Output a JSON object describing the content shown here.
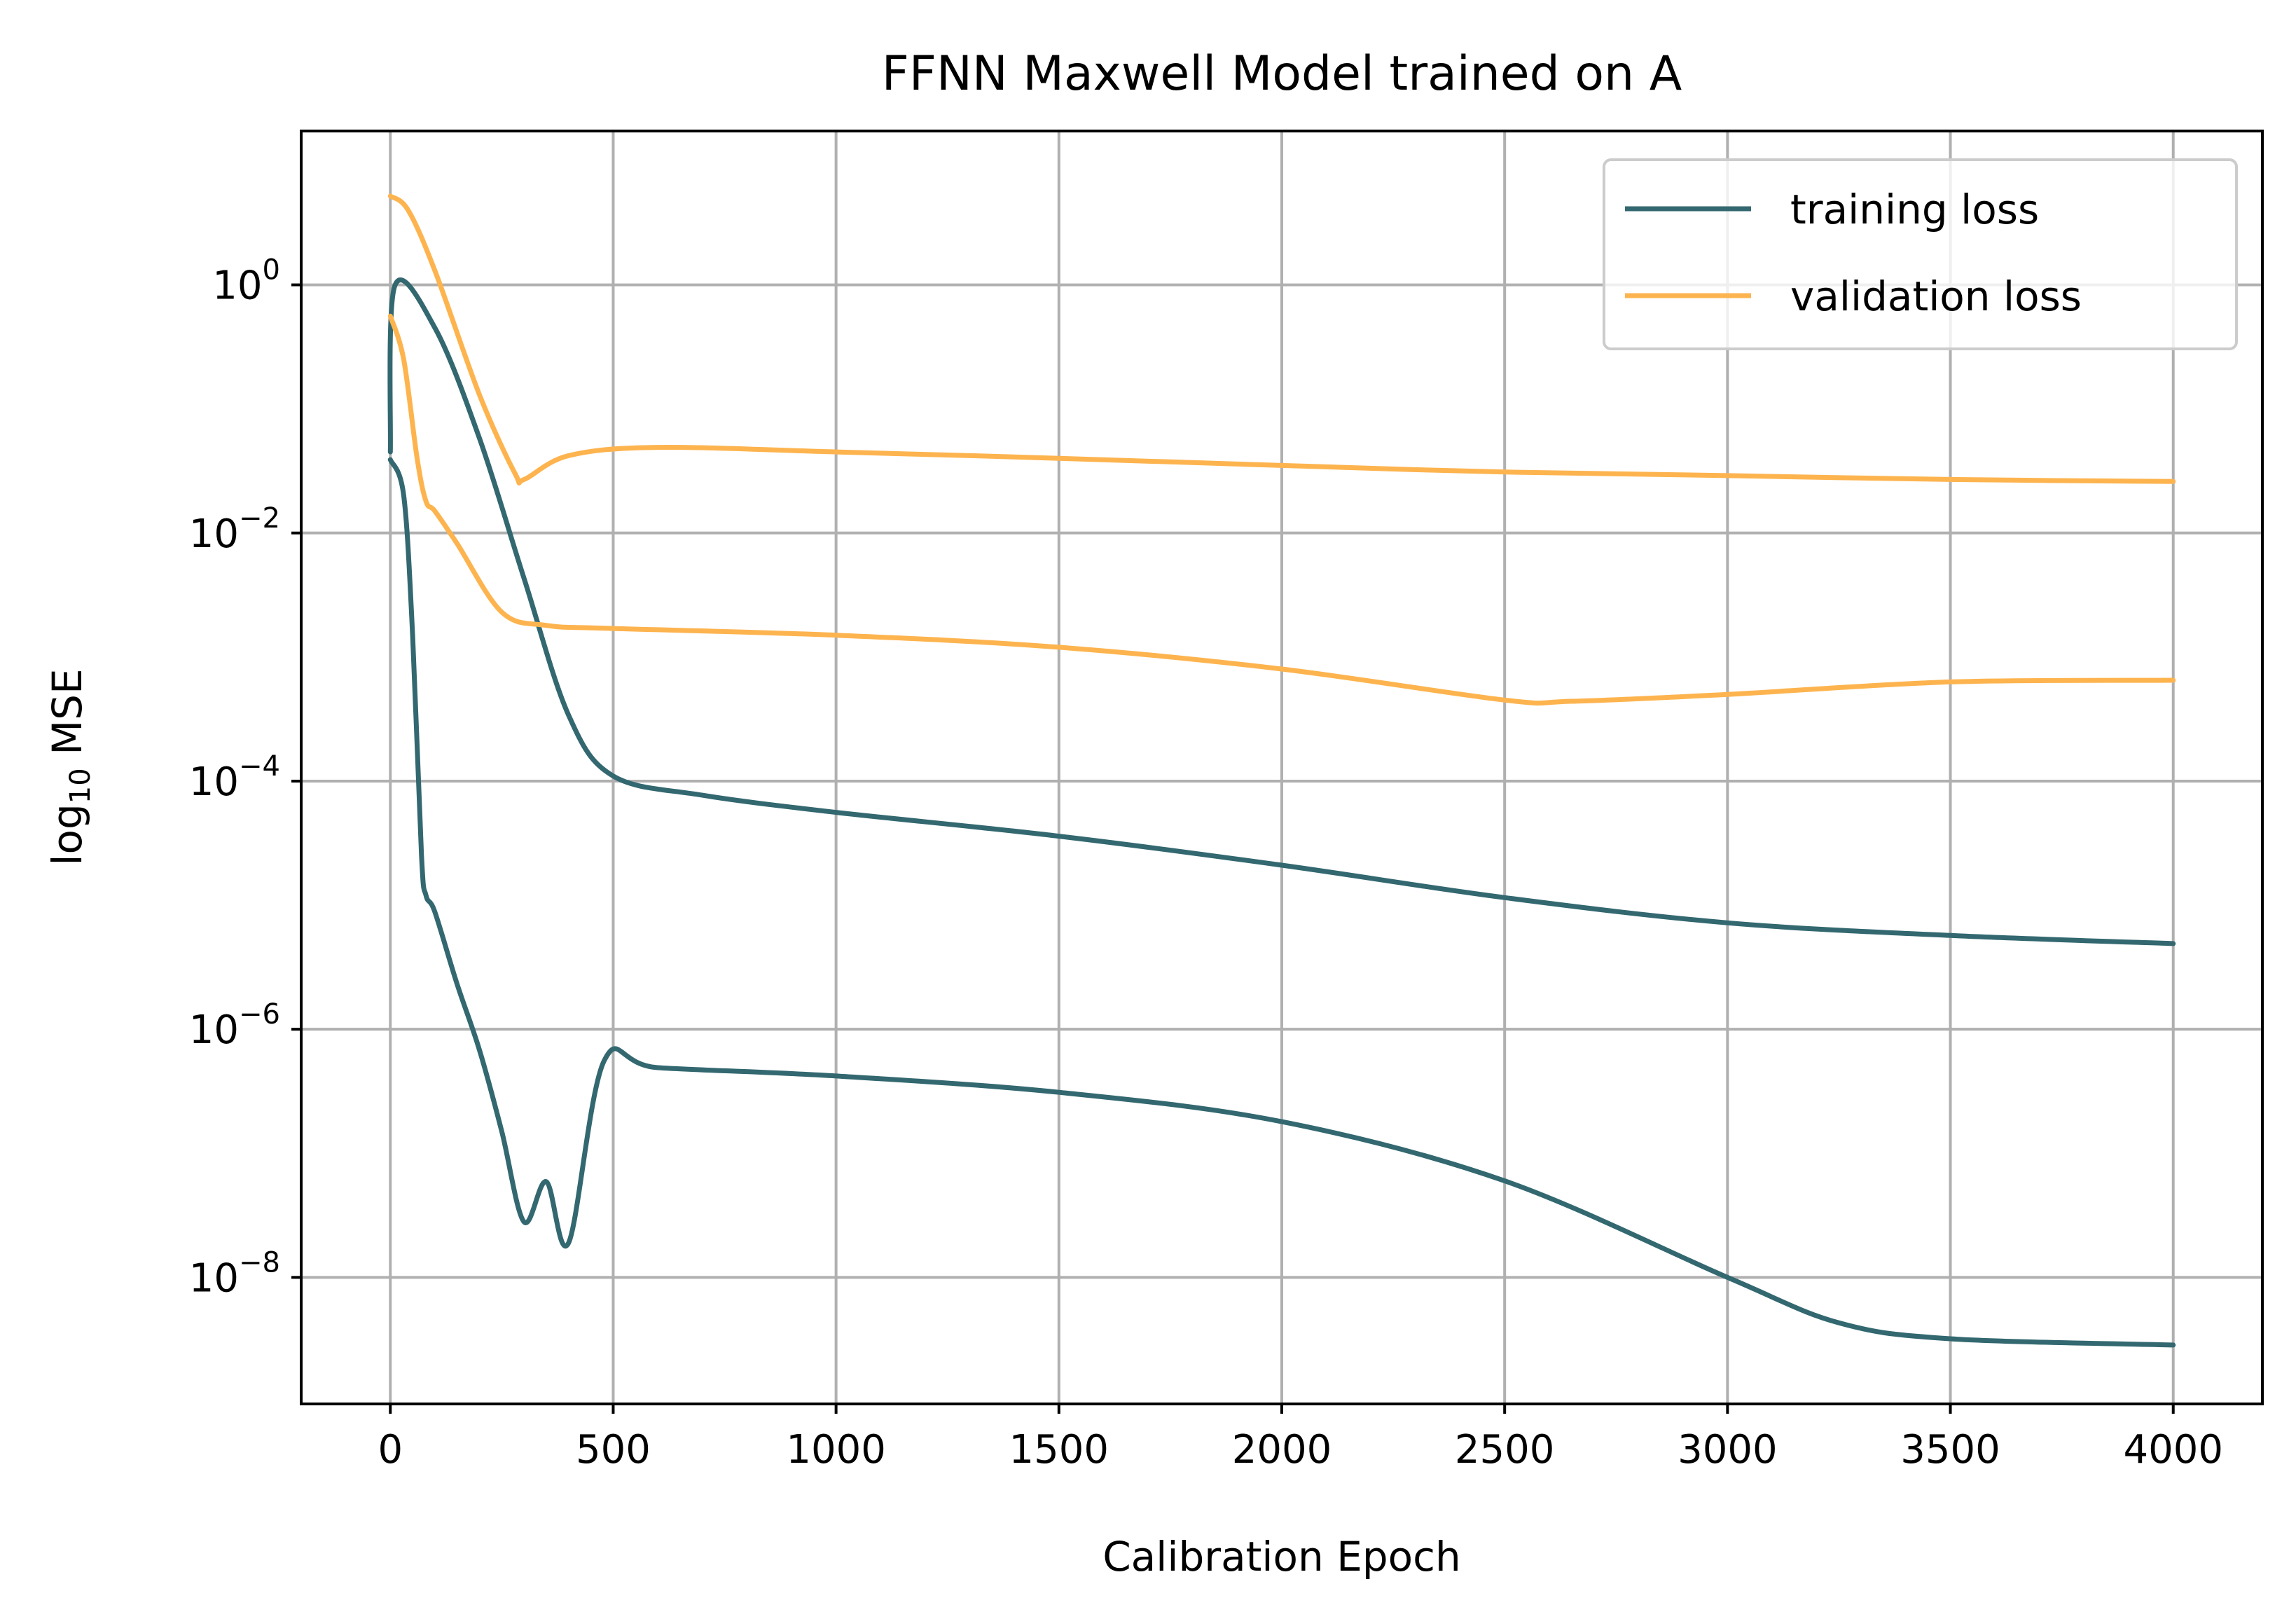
{
  "chart_data": {
    "type": "line",
    "title": "FFNN Maxwell Model trained on A",
    "xlabel": "Calibration Epoch",
    "ylabel": "log10 MSE",
    "ylabel_parts": {
      "base": "log",
      "sub": "10",
      "rest": " MSE"
    },
    "xlim": [
      -200,
      4200
    ],
    "ylim_log10": [
      -9.02,
      1.24
    ],
    "yscale": "log",
    "grid": true,
    "legend_position": "top-right",
    "x_ticks": [
      {
        "value": 0,
        "label": "0"
      },
      {
        "value": 500,
        "label": "500"
      },
      {
        "value": 1000,
        "label": "1000"
      },
      {
        "value": 1500,
        "label": "1500"
      },
      {
        "value": 2000,
        "label": "2000"
      },
      {
        "value": 2500,
        "label": "2500"
      },
      {
        "value": 3000,
        "label": "3000"
      },
      {
        "value": 3500,
        "label": "3500"
      },
      {
        "value": 4000,
        "label": "4000"
      }
    ],
    "y_ticks": [
      {
        "exp": 0,
        "base": "10",
        "sup": "0"
      },
      {
        "exp": -2,
        "base": "10",
        "sup": "−2"
      },
      {
        "exp": -4,
        "base": "10",
        "sup": "−4"
      },
      {
        "exp": -6,
        "base": "10",
        "sup": "−6"
      },
      {
        "exp": -8,
        "base": "10",
        "sup": "−8"
      }
    ],
    "legend": [
      {
        "label": "training loss",
        "color": "#336870"
      },
      {
        "label": "validation loss",
        "color": "#fdb44f"
      }
    ],
    "series": [
      {
        "name": "training loss",
        "color": "#336870",
        "points": [
          [
            0,
            0.045
          ],
          [
            10,
            0.98
          ],
          [
            100,
            0.45
          ],
          [
            200,
            0.058
          ],
          [
            300,
            0.0043
          ],
          [
            400,
            0.00034
          ],
          [
            500,
            0.00011
          ],
          [
            700,
            7.7e-05
          ],
          [
            1000,
            5.6e-05
          ],
          [
            1500,
            3.6e-05
          ],
          [
            2000,
            2.1e-05
          ],
          [
            2500,
            1.15e-05
          ],
          [
            3000,
            7.2e-06
          ],
          [
            3500,
            5.7e-06
          ],
          [
            4000,
            4.9e-06
          ]
        ]
      },
      {
        "name": "validation loss",
        "color": "#fdb44f",
        "points": [
          [
            0,
            5.2
          ],
          [
            40,
            4.0
          ],
          [
            100,
            1.3
          ],
          [
            200,
            0.13
          ],
          [
            280,
            0.03
          ],
          [
            300,
            0.027
          ],
          [
            400,
            0.042
          ],
          [
            600,
            0.049
          ],
          [
            1000,
            0.045
          ],
          [
            1500,
            0.04
          ],
          [
            2000,
            0.035
          ],
          [
            2500,
            0.031
          ],
          [
            3000,
            0.029
          ],
          [
            3500,
            0.027
          ],
          [
            4000,
            0.026
          ]
        ]
      },
      {
        "name": "training loss",
        "color": "#336870",
        "points": [
          [
            0,
            0.039
          ],
          [
            30,
            0.02
          ],
          [
            50,
            0.0015
          ],
          [
            70,
            2.5e-05
          ],
          [
            80,
            1.2e-05
          ],
          [
            100,
            8.8e-06
          ],
          [
            150,
            2.3e-06
          ],
          [
            200,
            6.8e-07
          ],
          [
            250,
            1.5e-07
          ],
          [
            300,
            2.8e-08
          ],
          [
            350,
            5.9e-08
          ],
          [
            400,
            1.9e-08
          ],
          [
            480,
            5.6e-07
          ],
          [
            600,
            4.9e-07
          ],
          [
            1000,
            4.2e-07
          ],
          [
            1500,
            3.1e-07
          ],
          [
            2000,
            1.8e-07
          ],
          [
            2500,
            6e-08
          ],
          [
            3000,
            1e-08
          ],
          [
            3250,
            4.3e-09
          ],
          [
            3500,
            3.2e-09
          ],
          [
            4000,
            2.85e-09
          ]
        ]
      },
      {
        "name": "validation loss",
        "color": "#fdb44f",
        "points": [
          [
            0,
            0.56
          ],
          [
            30,
            0.25
          ],
          [
            60,
            0.04
          ],
          [
            80,
            0.018
          ],
          [
            100,
            0.015
          ],
          [
            150,
            0.0082
          ],
          [
            250,
            0.0023
          ],
          [
            350,
            0.0018
          ],
          [
            500,
            0.0017
          ],
          [
            1000,
            0.0015
          ],
          [
            1500,
            0.0012
          ],
          [
            2000,
            0.0008
          ],
          [
            2500,
            0.00045
          ],
          [
            2650,
            0.00044
          ],
          [
            3000,
            0.0005
          ],
          [
            3500,
            0.00063
          ],
          [
            4000,
            0.00065
          ]
        ]
      }
    ]
  }
}
